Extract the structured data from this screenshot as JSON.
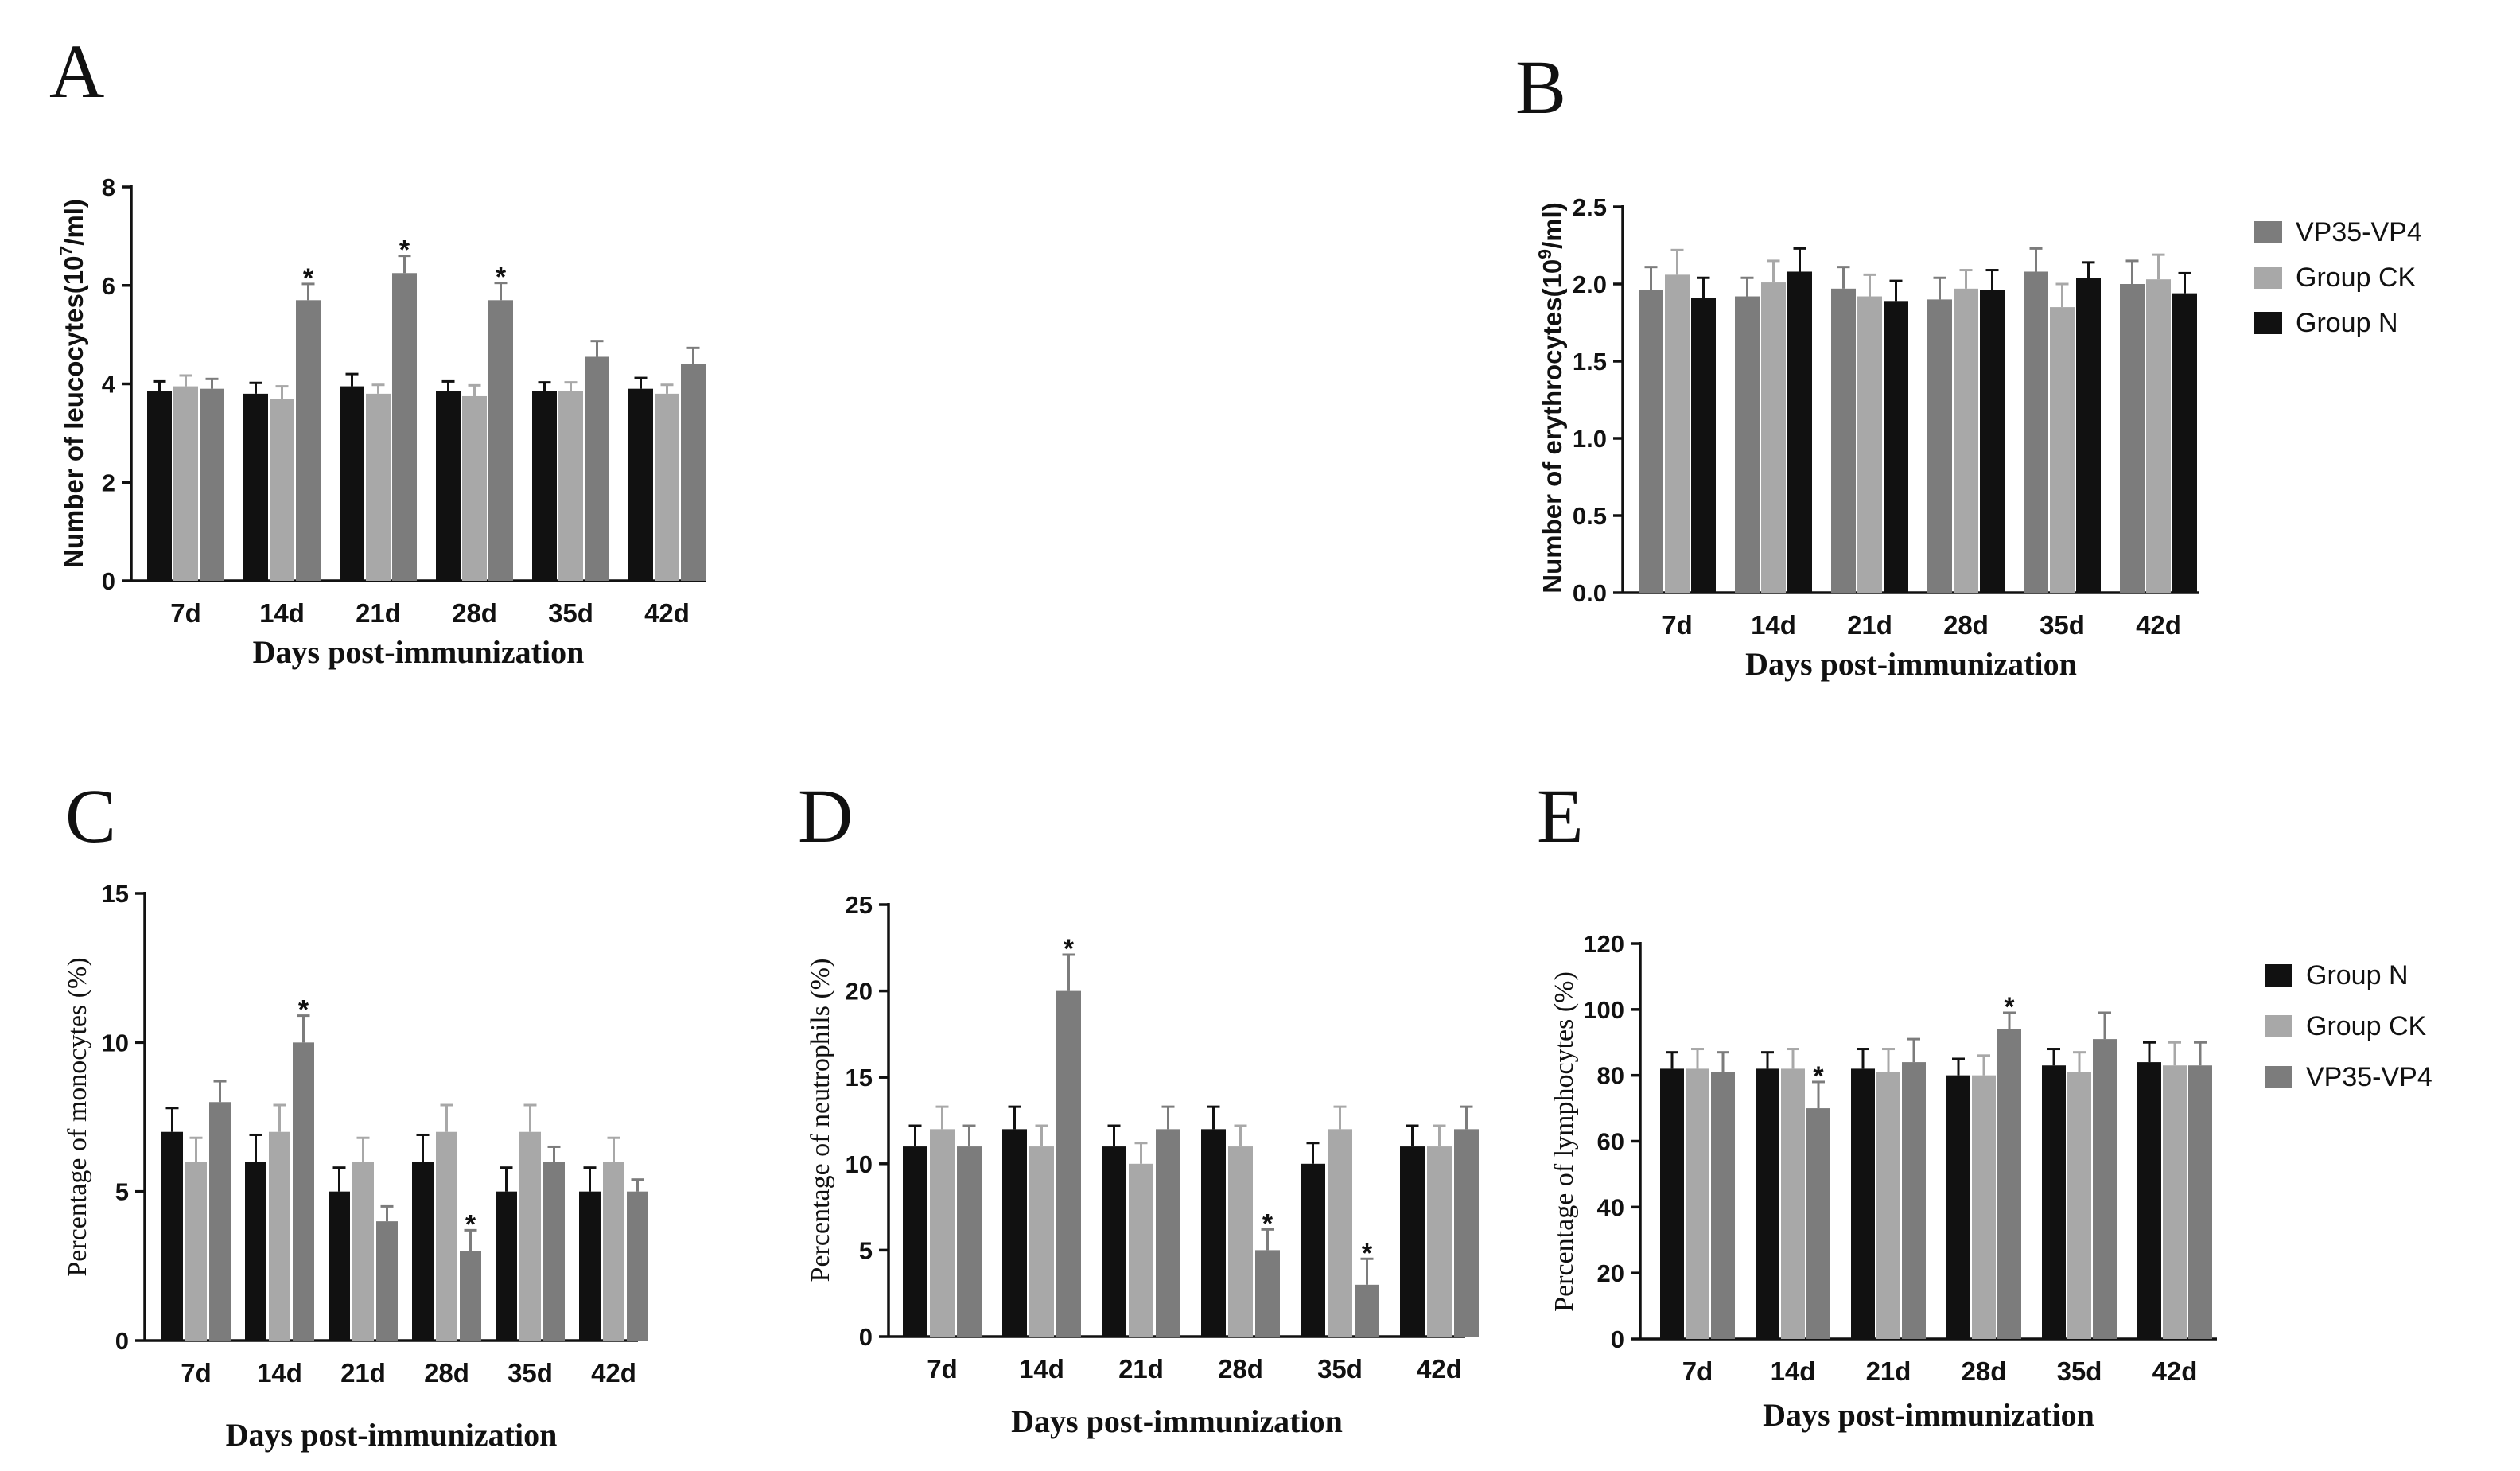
{
  "colors": {
    "group_n": "#111111",
    "group_ck": "#a8a8a8",
    "vp35_vp4": "#7c7c7c"
  },
  "chart_data": [
    {
      "panel": "A",
      "type": "bar",
      "xlabel": "Days post-immunization",
      "ylabel_parts": [
        "Number of leucocytes(10",
        "7",
        "/ml)"
      ],
      "ylim": [
        0,
        8
      ],
      "yticks": [
        "0",
        "2",
        "4",
        "6",
        "8"
      ],
      "categories": [
        "7d",
        "14d",
        "21d",
        "28d",
        "35d",
        "42d"
      ],
      "series": [
        {
          "name": "Group N",
          "color_key": "group_n",
          "values": [
            3.85,
            3.8,
            3.95,
            3.85,
            3.85,
            3.9
          ],
          "errors": [
            0.2,
            0.22,
            0.25,
            0.2,
            0.18,
            0.22
          ]
        },
        {
          "name": "Group CK",
          "color_key": "group_ck",
          "values": [
            3.95,
            3.7,
            3.8,
            3.75,
            3.85,
            3.8
          ],
          "errors": [
            0.22,
            0.25,
            0.18,
            0.22,
            0.18,
            0.18
          ]
        },
        {
          "name": "VP35-VP4",
          "color_key": "vp35_vp4",
          "values": [
            3.9,
            5.7,
            6.25,
            5.7,
            4.55,
            4.4
          ],
          "errors": [
            0.2,
            0.33,
            0.35,
            0.35,
            0.32,
            0.33
          ]
        }
      ],
      "stars": [
        {
          "category": 1,
          "series": 2,
          "label": "*"
        },
        {
          "category": 2,
          "series": 2,
          "label": "*"
        },
        {
          "category": 3,
          "series": 2,
          "label": "*"
        }
      ]
    },
    {
      "panel": "B",
      "type": "bar",
      "xlabel": "Days post-immunization",
      "ylabel_parts": [
        "Number of erythrocytes(10",
        "9",
        "/ml)"
      ],
      "ylim": [
        0,
        2.5
      ],
      "yticks": [
        "0.0",
        "0.5",
        "1.0",
        "1.5",
        "2.0",
        "2.5"
      ],
      "categories": [
        "7d",
        "14d",
        "21d",
        "28d",
        "35d",
        "42d"
      ],
      "series": [
        {
          "name": "VP35-VP4",
          "color_key": "vp35_vp4",
          "values": [
            1.96,
            1.92,
            1.97,
            1.9,
            2.08,
            2.0
          ],
          "errors": [
            0.15,
            0.12,
            0.14,
            0.14,
            0.15,
            0.15
          ]
        },
        {
          "name": "Group CK",
          "color_key": "group_ck",
          "values": [
            2.06,
            2.01,
            1.92,
            1.97,
            1.85,
            2.03
          ],
          "errors": [
            0.16,
            0.14,
            0.14,
            0.12,
            0.15,
            0.16
          ]
        },
        {
          "name": "Group N",
          "color_key": "group_n",
          "values": [
            1.91,
            2.08,
            1.89,
            1.96,
            2.04,
            1.94
          ],
          "errors": [
            0.13,
            0.15,
            0.13,
            0.13,
            0.1,
            0.13
          ]
        }
      ],
      "stars": []
    },
    {
      "panel": "C",
      "type": "bar",
      "xlabel": "Days post-immunization",
      "ylabel_parts": [
        "Percentage of monocytes (%)"
      ],
      "ylim": [
        0,
        15
      ],
      "yticks": [
        "0",
        "5",
        "10",
        "15"
      ],
      "categories": [
        "7d",
        "14d",
        "21d",
        "28d",
        "35d",
        "42d"
      ],
      "series": [
        {
          "name": "Group N",
          "color_key": "group_n",
          "values": [
            7,
            6,
            5,
            6,
            5,
            5
          ],
          "errors": [
            0.8,
            0.9,
            0.8,
            0.9,
            0.8,
            0.8
          ]
        },
        {
          "name": "Group CK",
          "color_key": "group_ck",
          "values": [
            6,
            7,
            6,
            7,
            7,
            6
          ],
          "errors": [
            0.8,
            0.9,
            0.8,
            0.9,
            0.9,
            0.8
          ]
        },
        {
          "name": "VP35-VP4",
          "color_key": "vp35_vp4",
          "values": [
            8,
            10,
            4,
            3,
            6,
            5
          ],
          "errors": [
            0.7,
            0.9,
            0.5,
            0.7,
            0.5,
            0.4
          ]
        }
      ],
      "stars": [
        {
          "category": 1,
          "series": 2,
          "label": "*"
        },
        {
          "category": 3,
          "series": 2,
          "label": "*"
        }
      ]
    },
    {
      "panel": "D",
      "type": "bar",
      "xlabel": "Days post-immunization",
      "ylabel_parts": [
        "Percentage of neutrophils (%)"
      ],
      "ylim": [
        0,
        25
      ],
      "yticks": [
        "0",
        "5",
        "10",
        "15",
        "20",
        "25"
      ],
      "categories": [
        "7d",
        "14d",
        "21d",
        "28d",
        "35d",
        "42d"
      ],
      "series": [
        {
          "name": "Group N",
          "color_key": "group_n",
          "values": [
            11,
            12,
            11,
            12,
            10,
            11
          ],
          "errors": [
            1.2,
            1.3,
            1.2,
            1.3,
            1.2,
            1.2
          ]
        },
        {
          "name": "Group CK",
          "color_key": "group_ck",
          "values": [
            12,
            11,
            10,
            11,
            12,
            11
          ],
          "errors": [
            1.3,
            1.2,
            1.2,
            1.2,
            1.3,
            1.2
          ]
        },
        {
          "name": "VP35-VP4",
          "color_key": "vp35_vp4",
          "values": [
            11,
            20,
            12,
            5,
            3,
            12
          ],
          "errors": [
            1.2,
            2.1,
            1.3,
            1.2,
            1.5,
            1.3
          ]
        }
      ],
      "stars": [
        {
          "category": 1,
          "series": 2,
          "label": "*"
        },
        {
          "category": 3,
          "series": 2,
          "label": "*"
        },
        {
          "category": 4,
          "series": 2,
          "label": "*"
        }
      ]
    },
    {
      "panel": "E",
      "type": "bar",
      "xlabel": "Days post-immunization",
      "ylabel_parts": [
        "Percentage of lymphocytes (%)"
      ],
      "ylim": [
        0,
        120
      ],
      "yticks": [
        "0",
        "20",
        "40",
        "60",
        "80",
        "100",
        "120"
      ],
      "categories": [
        "7d",
        "14d",
        "21d",
        "28d",
        "35d",
        "42d"
      ],
      "series": [
        {
          "name": "Group N",
          "color_key": "group_n",
          "values": [
            82,
            82,
            82,
            80,
            83,
            84
          ],
          "errors": [
            5,
            5,
            6,
            5,
            5,
            6
          ]
        },
        {
          "name": "Group CK",
          "color_key": "group_ck",
          "values": [
            82,
            82,
            81,
            80,
            81,
            83
          ],
          "errors": [
            6,
            6,
            7,
            6,
            6,
            7
          ]
        },
        {
          "name": "VP35-VP4",
          "color_key": "vp35_vp4",
          "values": [
            81,
            70,
            84,
            94,
            91,
            83
          ],
          "errors": [
            6,
            8,
            7,
            5,
            8,
            7
          ]
        }
      ],
      "stars": [
        {
          "category": 1,
          "series": 2,
          "label": "*"
        },
        {
          "category": 3,
          "series": 2,
          "label": "*"
        }
      ]
    }
  ],
  "legends": [
    {
      "for_panel": "B",
      "items": [
        {
          "label": "VP35-VP4",
          "color_key": "vp35_vp4"
        },
        {
          "label": "Group CK",
          "color_key": "group_ck"
        },
        {
          "label": "Group N",
          "color_key": "group_n"
        }
      ]
    },
    {
      "for_panel": "E",
      "items": [
        {
          "label": "Group N",
          "color_key": "group_n"
        },
        {
          "label": "Group CK",
          "color_key": "group_ck"
        },
        {
          "label": "VP35-VP4",
          "color_key": "vp35_vp4"
        }
      ]
    }
  ]
}
